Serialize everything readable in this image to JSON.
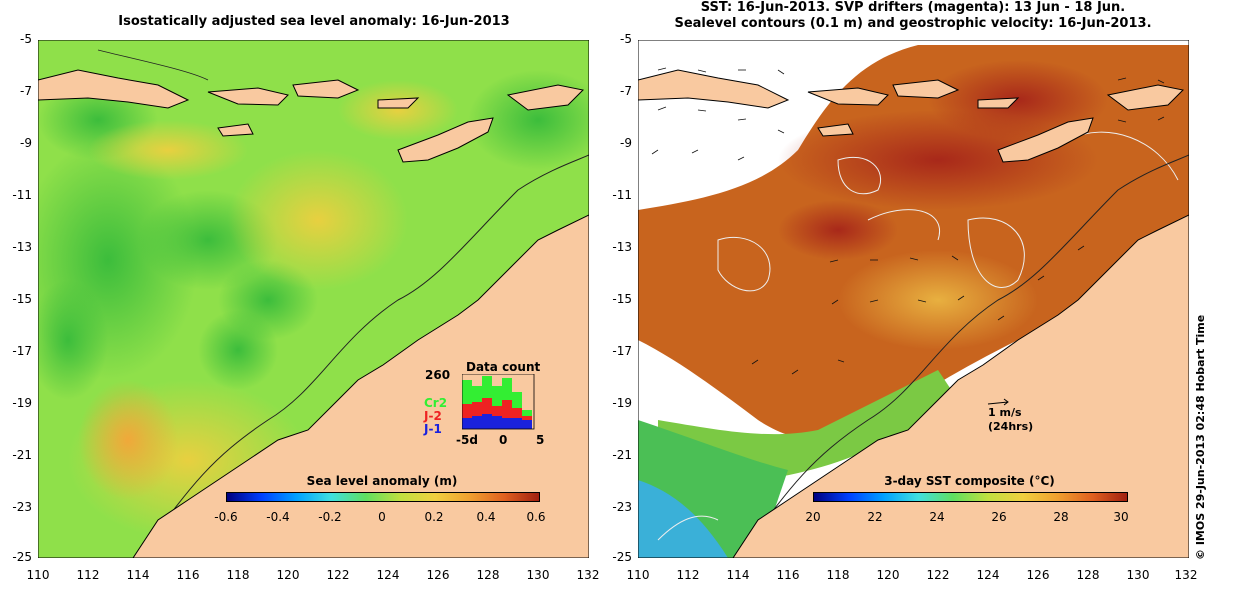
{
  "left_panel": {
    "title": "Isostatically adjusted sea level anomaly: 16-Jun-2013",
    "y_ticks": [
      "-5",
      "-7",
      "-9",
      "-11",
      "-13",
      "-15",
      "-17",
      "-19",
      "-21",
      "-23",
      "-25"
    ],
    "x_ticks": [
      "110",
      "112",
      "114",
      "116",
      "118",
      "120",
      "122",
      "124",
      "126",
      "128",
      "130",
      "132"
    ],
    "colorbar": {
      "title": "Sea level anomaly (m)",
      "ticks": [
        "-0.6",
        "-0.4",
        "-0.2",
        "0",
        "0.2",
        "0.4",
        "0.6"
      ]
    },
    "data_count": {
      "title": "Data count",
      "max_label": "260",
      "missions": [
        "Cr2",
        "J-2",
        "J-1"
      ],
      "colors": {
        "Cr2": "#33ee33",
        "J-2": "#ee2222",
        "J-1": "#1a22dd"
      },
      "x_labels": [
        "-5d",
        "0",
        "5"
      ]
    }
  },
  "right_panel": {
    "title_line1": "SST: 16-Jun-2013. SVP drifters (magenta): 13 Jun - 18 Jun.",
    "title_line2": "Sealevel contours (0.1 m) and geostrophic velocity: 16-Jun-2013.",
    "y_ticks": [
      "-5",
      "-7",
      "-9",
      "-11",
      "-13",
      "-15",
      "-17",
      "-19",
      "-21",
      "-23",
      "-25"
    ],
    "x_ticks": [
      "110",
      "112",
      "114",
      "116",
      "118",
      "120",
      "122",
      "124",
      "126",
      "128",
      "130",
      "132"
    ],
    "velocity_scale": {
      "label": "1 m/s",
      "sublabel": "(24hrs)"
    },
    "colorbar": {
      "title": "3-day SST composite (°C)",
      "ticks": [
        "20",
        "22",
        "24",
        "26",
        "28",
        "30"
      ]
    }
  },
  "credit": "© IMOS 29-Jun-2013 02:48 Hobart Time",
  "colors": {
    "land": "#f9c9a0",
    "ocean_green": "#7ee05a",
    "sst_orange": "#c8641e"
  }
}
